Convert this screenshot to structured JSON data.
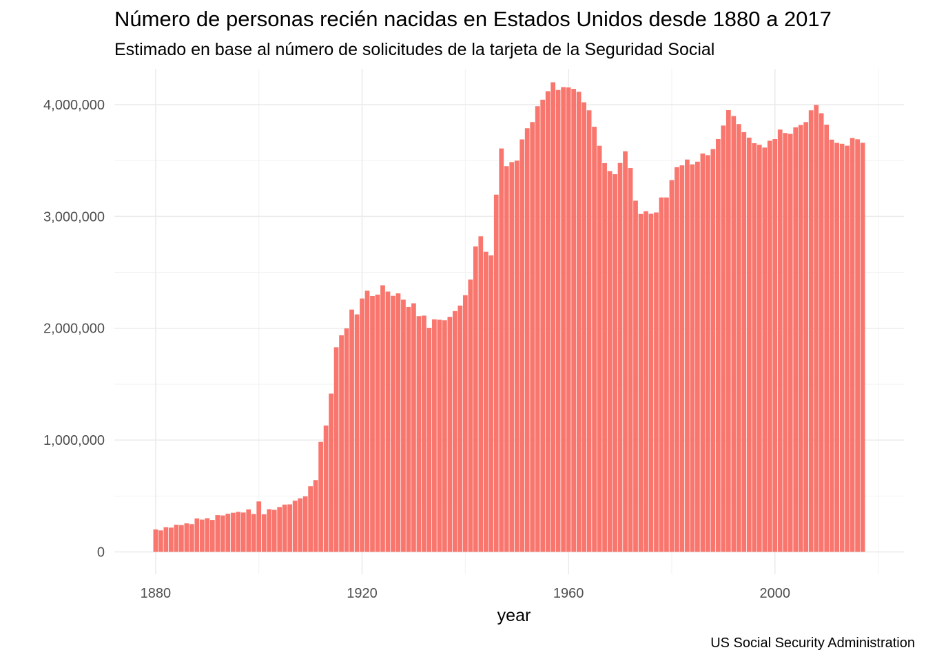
{
  "chart_data": {
    "type": "bar",
    "title": "Número de personas recién nacidas en Estados Unidos desde 1880 a 2017",
    "subtitle": "Estimado en base al número de solicitudes de la tarjeta de la Seguridad Social",
    "xlabel": "year",
    "ylabel": "",
    "caption": "US Social Security Administration",
    "bar_color": "#F8766D",
    "grid": true,
    "legend": "none",
    "xlim": [
      1872,
      2025
    ],
    "ylim": [
      -200000,
      4320000
    ],
    "x_ticks": [
      1880,
      1920,
      1960,
      2000
    ],
    "x_tick_labels": [
      "1880",
      "1920",
      "1960",
      "2000"
    ],
    "y_ticks": [
      0,
      1000000,
      2000000,
      3000000,
      4000000
    ],
    "y_tick_labels": [
      "0",
      "1,000,000",
      "2,000,000",
      "3,000,000",
      "4,000,000"
    ],
    "x_start": 1880,
    "values": [
      201000,
      192000,
      221000,
      217000,
      243000,
      240000,
      255000,
      248000,
      299000,
      289000,
      301000,
      286000,
      329000,
      326000,
      341000,
      350000,
      358000,
      352000,
      380000,
      339000,
      451000,
      336000,
      382000,
      376000,
      401000,
      423000,
      425000,
      458000,
      479000,
      497000,
      587000,
      642000,
      984000,
      1130000,
      1416000,
      1830000,
      1937000,
      1999000,
      2167000,
      2124000,
      2266000,
      2336000,
      2288000,
      2301000,
      2384000,
      2328000,
      2290000,
      2312000,
      2256000,
      2190000,
      2223000,
      2108000,
      2113000,
      2004000,
      2080000,
      2076000,
      2071000,
      2102000,
      2154000,
      2203000,
      2296000,
      2436000,
      2732000,
      2822000,
      2684000,
      2652000,
      3195000,
      3608000,
      3450000,
      3486000,
      3499000,
      3689000,
      3789000,
      3844000,
      3986000,
      4044000,
      4120000,
      4200000,
      4131000,
      4157000,
      4154000,
      4141000,
      4115000,
      4021000,
      3949000,
      3802000,
      3632000,
      3477000,
      3406000,
      3378000,
      3478000,
      3583000,
      3433000,
      3141000,
      3022000,
      3047000,
      3024000,
      3036000,
      3170000,
      3170000,
      3325000,
      3441000,
      3457000,
      3509000,
      3466000,
      3490000,
      3563000,
      3548000,
      3603000,
      3692000,
      3813000,
      3951000,
      3898000,
      3826000,
      3754000,
      3705000,
      3655000,
      3641000,
      3616000,
      3677000,
      3692000,
      3777000,
      3746000,
      3739000,
      3797000,
      3818000,
      3844000,
      3949000,
      3997000,
      3923000,
      3821000,
      3687000,
      3658000,
      3650000,
      3633000,
      3702000,
      3690000,
      3659000
    ]
  }
}
